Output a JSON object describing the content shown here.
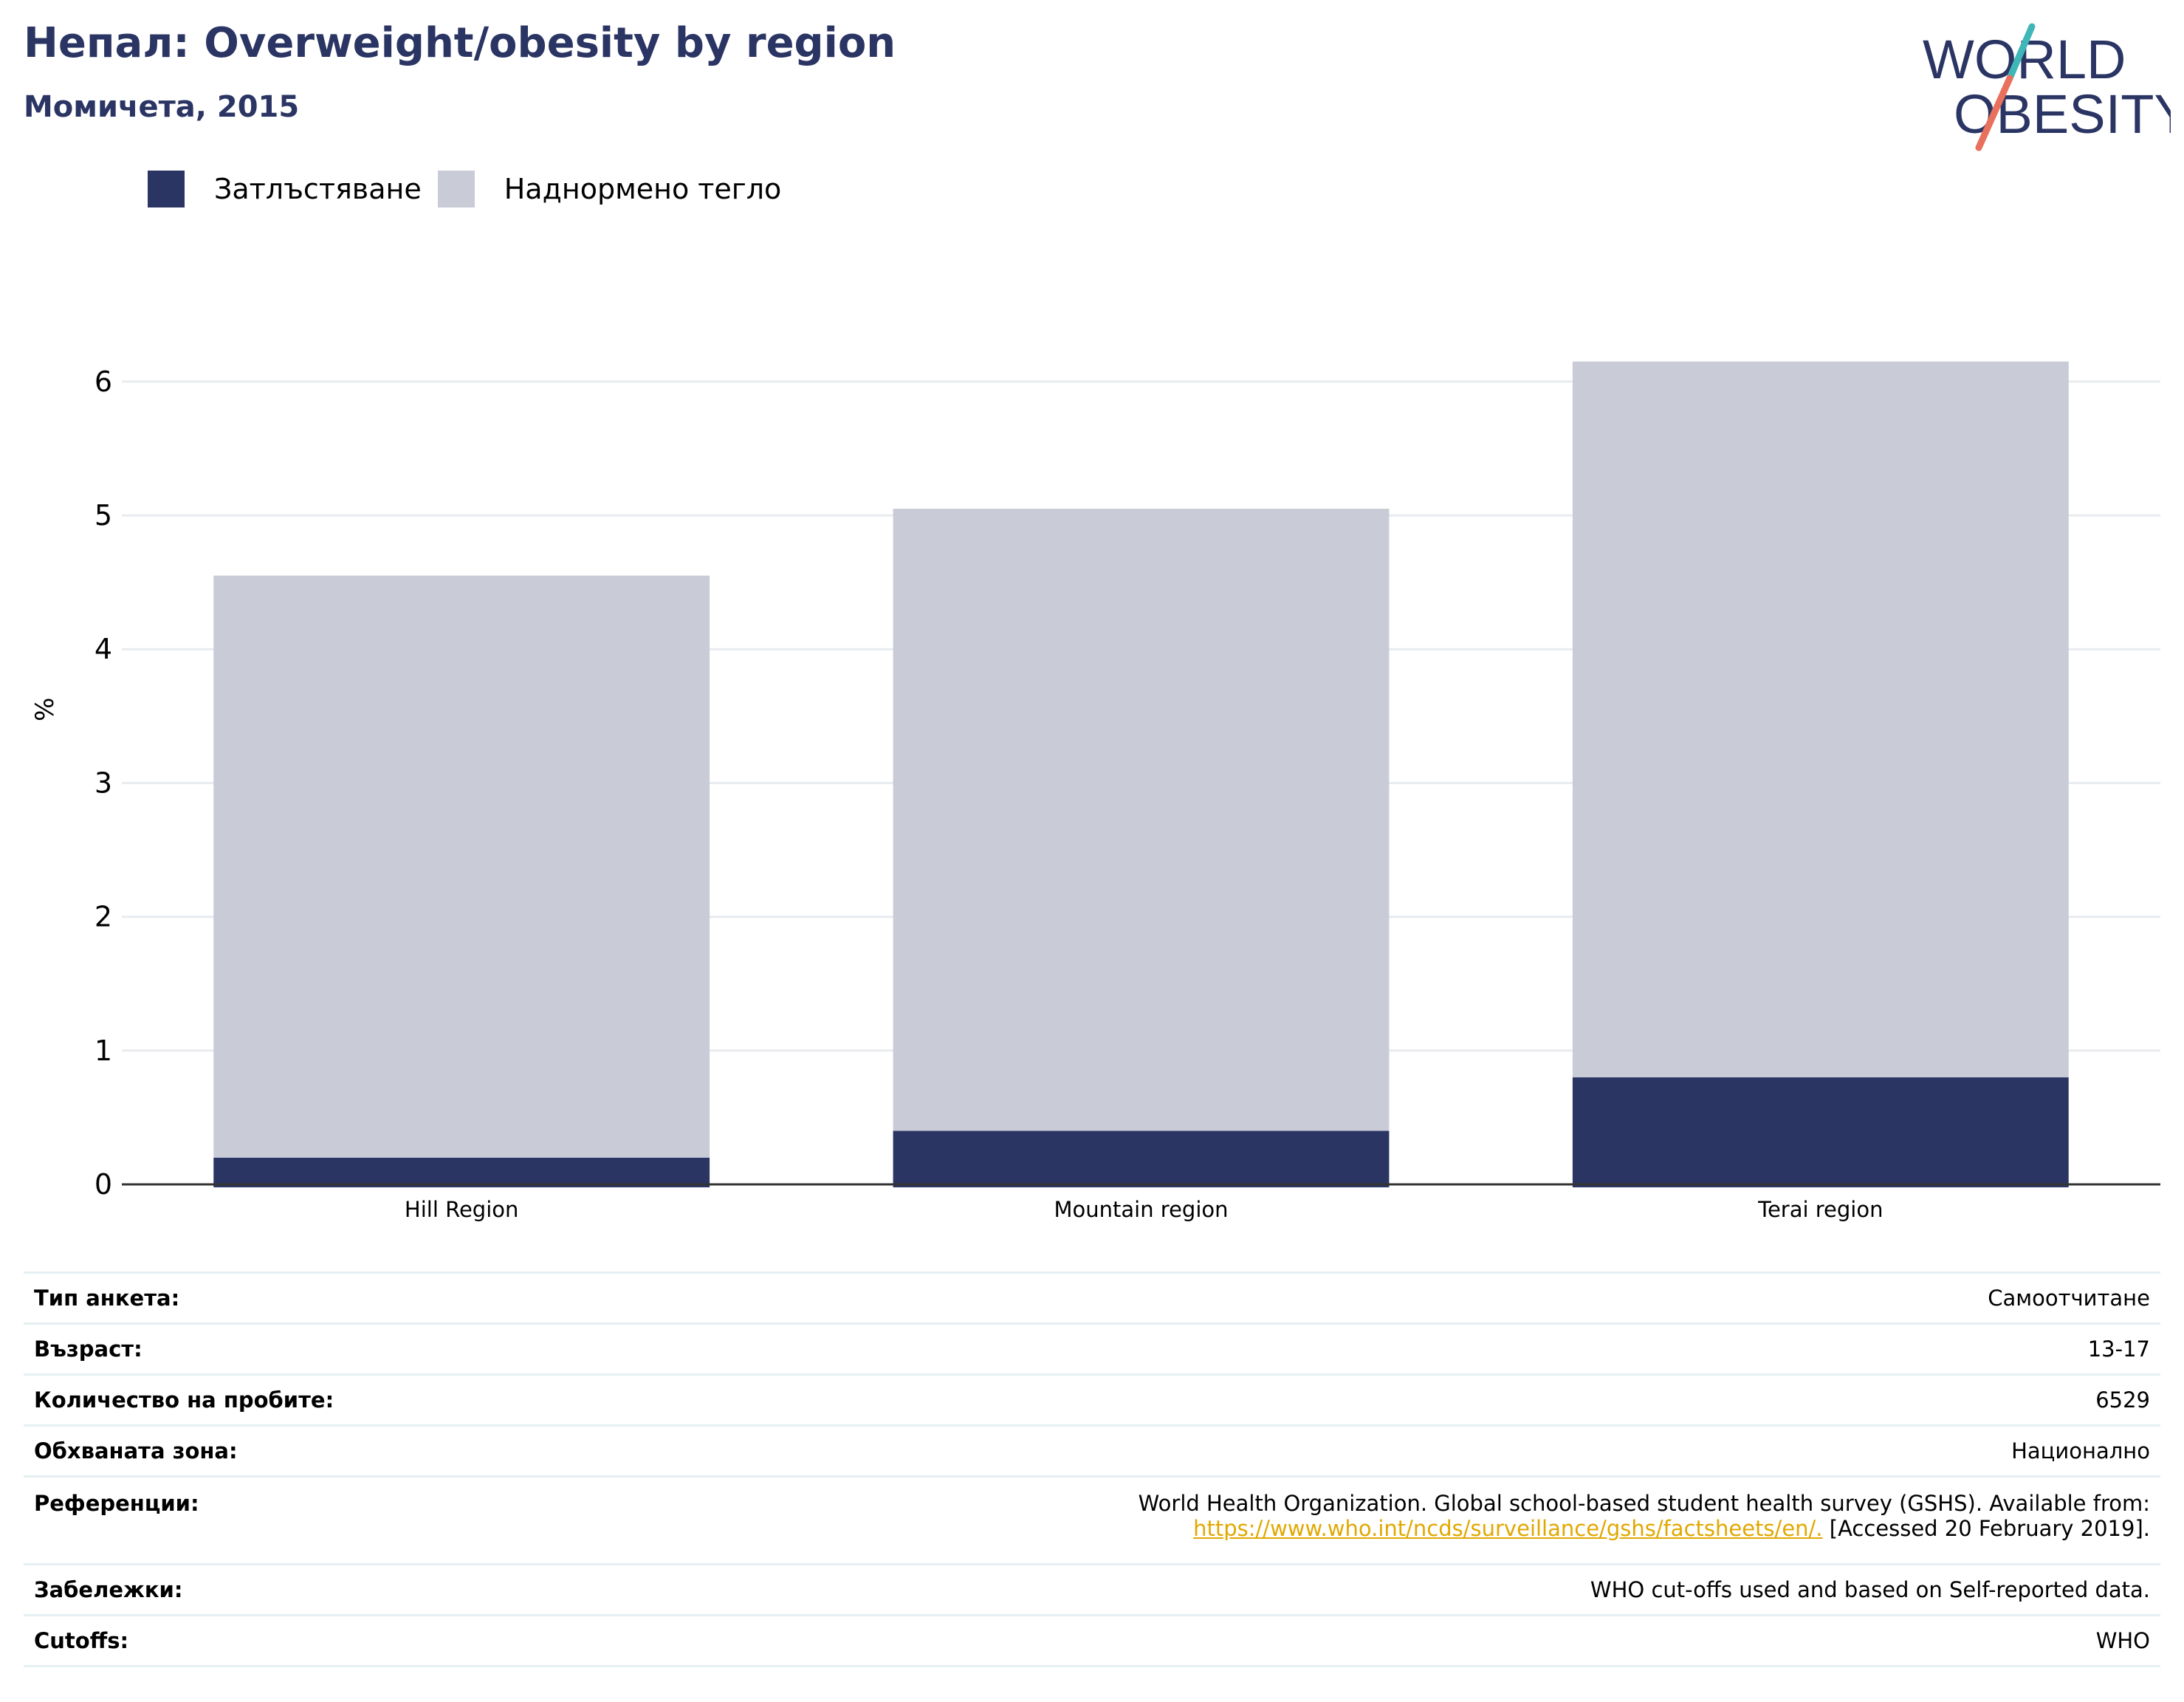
{
  "header": {
    "title": "Непал: Overweight/obesity by region",
    "subtitle": "Момичета, 2015",
    "logo_line1": "WORLD",
    "logo_line2": "OBESITY"
  },
  "colors": {
    "obesity": "#2b3564",
    "overweight": "#c9cbd7",
    "title": "#2b3564",
    "link": "#e1a800",
    "logo_teal": "#3fb6b8",
    "logo_coral": "#e8705c"
  },
  "chart_data": {
    "type": "bar",
    "stacked": true,
    "categories": [
      "Hill Region",
      "Mountain region",
      "Terai region"
    ],
    "series": [
      {
        "name": "Затлъстяване",
        "values": [
          0.2,
          0.4,
          0.8
        ]
      },
      {
        "name": "Наднормено тегло",
        "values": [
          4.35,
          4.65,
          5.35
        ]
      }
    ],
    "ylabel": "%",
    "xlabel": "",
    "ylim": [
      0,
      6.5
    ],
    "yticks": [
      0,
      1,
      2,
      3,
      4,
      5,
      6
    ],
    "grid": true,
    "legend_position": "top-left"
  },
  "info": {
    "survey_type": {
      "label": "Тип анкета:",
      "value": "Самоотчитане"
    },
    "age": {
      "label": "Възраст:",
      "value": "13-17"
    },
    "sample_size": {
      "label": "Количество на пробите:",
      "value": "6529"
    },
    "area": {
      "label": "Обхваната зона:",
      "value": "Национално"
    },
    "references": {
      "label": "Референции:",
      "text": "World Health Organization. Global school-based student health survey (GSHS). Available from:",
      "link": "https://www.who.int/ncds/surveillance/gshs/factsheets/en/.",
      "accessed": "[Accessed 20 February 2019]."
    },
    "notes": {
      "label": "Забележки:",
      "value": "WHO cut-offs used and based on Self-reported data."
    },
    "cutoffs": {
      "label": "Cutoffs:",
      "value": "WHO"
    }
  }
}
